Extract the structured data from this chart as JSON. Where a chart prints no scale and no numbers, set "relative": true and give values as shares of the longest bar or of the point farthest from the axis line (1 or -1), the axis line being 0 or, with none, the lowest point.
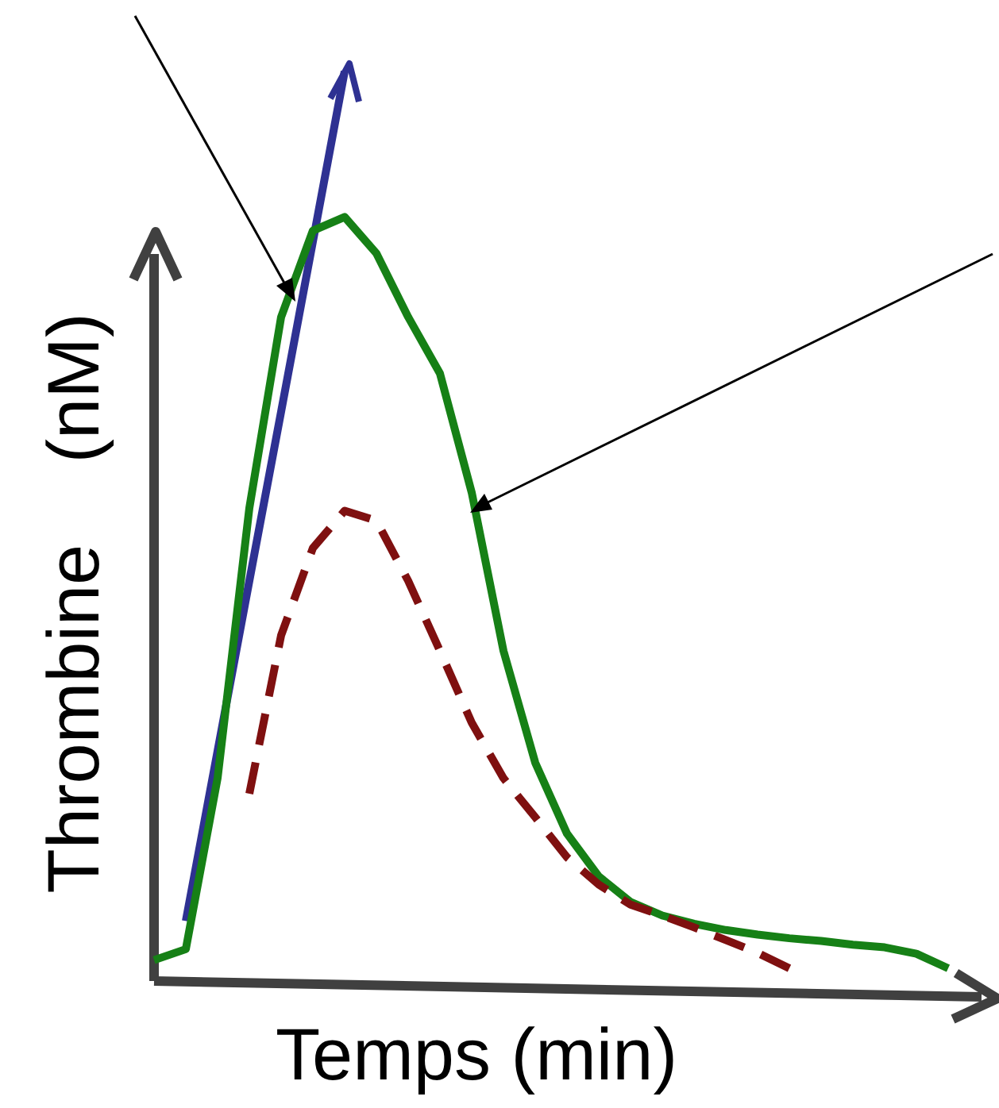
{
  "chart_data": {
    "type": "line",
    "relative": true,
    "xlabel": "Temps (min)",
    "ylabel": "Thrombine    (nM)",
    "categories": [
      null,
      null,
      null,
      null,
      null,
      null,
      null,
      null,
      null,
      null,
      null,
      null,
      null,
      null,
      null,
      null,
      null,
      null,
      null,
      null,
      null,
      null,
      null,
      null,
      null,
      null
    ],
    "series": [
      {
        "color": "#2e3192",
        "line_style": "solid",
        "values": [
          null,
          0.066,
          0.253,
          0.44,
          0.626,
          0.813,
          1.0,
          null,
          null,
          null,
          null,
          null,
          null,
          null,
          null,
          null,
          null,
          null,
          null,
          null,
          null,
          null,
          null,
          null,
          null,
          null
        ]
      },
      {
        "color": "#168016",
        "line_style": "solid",
        "values": [
          0.023,
          0.035,
          0.223,
          0.52,
          0.73,
          0.825,
          0.84,
          0.8,
          0.73,
          0.668,
          0.537,
          0.363,
          0.24,
          0.162,
          0.115,
          0.087,
          0.072,
          0.063,
          0.056,
          0.051,
          0.047,
          0.044,
          0.04,
          0.037,
          0.03,
          0.014
        ]
      },
      {
        "color": "#7f1010",
        "line_style": "dashed",
        "values": [
          null,
          null,
          null,
          0.206,
          0.38,
          0.476,
          0.517,
          0.506,
          0.44,
          0.363,
          0.284,
          0.223,
          0.18,
          0.136,
          0.106,
          0.084,
          0.072,
          0.059,
          0.045,
          0.031,
          0.014,
          null,
          null,
          null,
          null,
          null
        ]
      }
    ]
  }
}
